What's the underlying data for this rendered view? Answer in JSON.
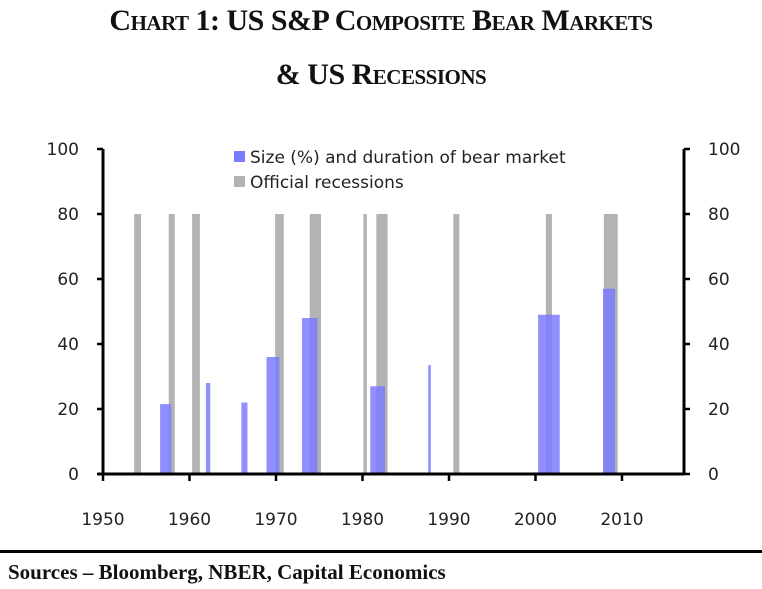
{
  "chart_data": {
    "type": "bar",
    "title": "Chart 1: US S&P Composite Bear Markets",
    "subtitle": "& US Recessions",
    "xlabel": "",
    "ylabel": "",
    "xlim": [
      1950,
      2017
    ],
    "ylim": [
      0,
      100
    ],
    "yticks": [
      "0",
      "20",
      "40",
      "60",
      "80",
      "100"
    ],
    "xticks": [
      "1950",
      "1960",
      "1970",
      "1980",
      "1990",
      "2000",
      "2010"
    ],
    "grid": false,
    "legend_position": "top-center",
    "series": [
      {
        "name": "Size (%) and duration of bear market",
        "color": "#7b7bff",
        "bars": [
          {
            "start": 1956.6,
            "end": 1957.9,
            "value": 21.5
          },
          {
            "start": 1961.9,
            "end": 1962.4,
            "value": 28
          },
          {
            "start": 1966.0,
            "end": 1966.7,
            "value": 22
          },
          {
            "start": 1968.9,
            "end": 1970.4,
            "value": 36
          },
          {
            "start": 1973.0,
            "end": 1974.8,
            "value": 48
          },
          {
            "start": 1980.9,
            "end": 1982.6,
            "value": 27
          },
          {
            "start": 1987.6,
            "end": 1987.9,
            "value": 33.5
          },
          {
            "start": 2000.3,
            "end": 2002.8,
            "value": 49
          },
          {
            "start": 2007.8,
            "end": 2009.2,
            "value": 57
          }
        ]
      },
      {
        "name": "Official recessions",
        "color": "#b3b3b3",
        "bars": [
          {
            "start": 1953.6,
            "end": 1954.4,
            "value": 80
          },
          {
            "start": 1957.6,
            "end": 1958.3,
            "value": 80
          },
          {
            "start": 1960.3,
            "end": 1961.2,
            "value": 80
          },
          {
            "start": 1969.9,
            "end": 1970.9,
            "value": 80
          },
          {
            "start": 1973.9,
            "end": 1975.2,
            "value": 80
          },
          {
            "start": 1980.1,
            "end": 1980.5,
            "value": 80
          },
          {
            "start": 1981.6,
            "end": 1982.9,
            "value": 80
          },
          {
            "start": 1990.5,
            "end": 1991.2,
            "value": 80
          },
          {
            "start": 2001.2,
            "end": 2001.9,
            "value": 80
          },
          {
            "start": 2007.9,
            "end": 2009.5,
            "value": 80
          }
        ]
      }
    ]
  },
  "title_line1": "Chart 1: US S&P Composite Bear Markets",
  "title_line2": "& US Recessions",
  "source": "Sources – Bloomberg, NBER, Capital Economics"
}
